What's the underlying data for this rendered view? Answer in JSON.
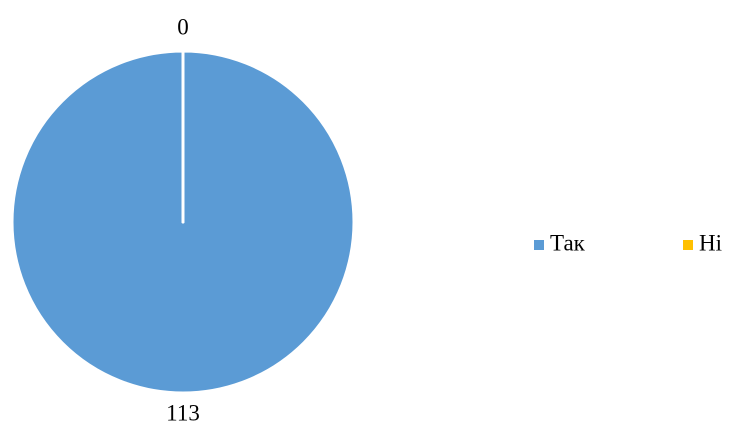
{
  "chart_data": {
    "type": "pie",
    "categories": [
      "Так",
      "Ні"
    ],
    "values": [
      113,
      0
    ],
    "colors": [
      "#5b9bd5",
      "#ffc000"
    ],
    "legend": "right"
  }
}
